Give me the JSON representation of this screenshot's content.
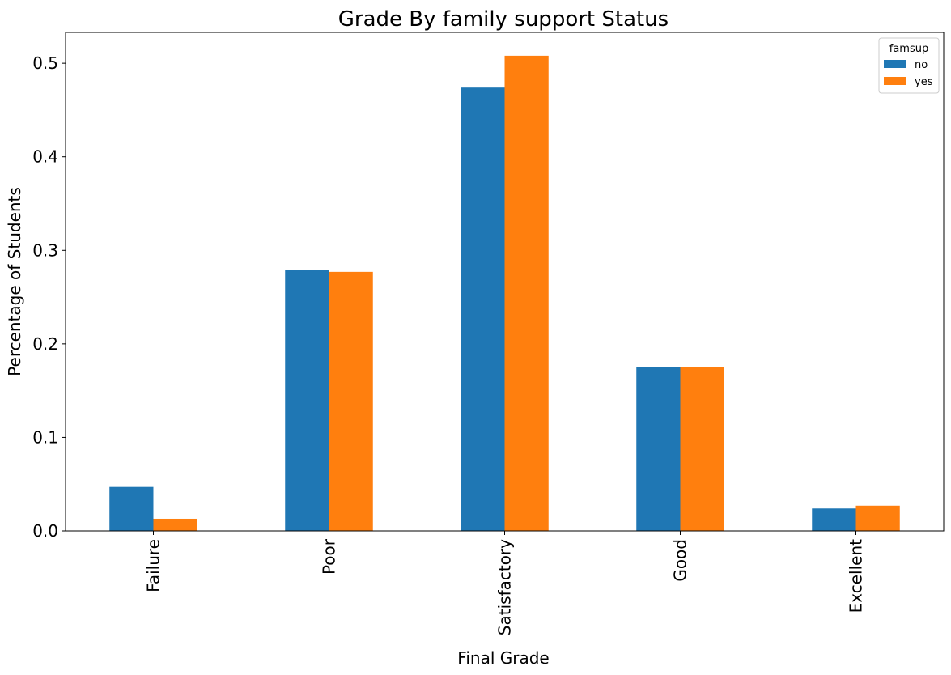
{
  "chart_data": {
    "type": "bar",
    "title": "Grade By family support Status",
    "xlabel": "Final Grade",
    "ylabel": "Percentage of Students",
    "categories": [
      "Failure",
      "Poor",
      "Satisfactory",
      "Good",
      "Excellent"
    ],
    "series": [
      {
        "name": "no",
        "color": "#1f77b4",
        "values": [
          0.047,
          0.279,
          0.474,
          0.175,
          0.024
        ]
      },
      {
        "name": "yes",
        "color": "#ff7f0e",
        "values": [
          0.013,
          0.277,
          0.508,
          0.175,
          0.027
        ]
      }
    ],
    "ylim": [
      0,
      0.533
    ],
    "yticks": [
      "0.0",
      "0.1",
      "0.2",
      "0.3",
      "0.4",
      "0.5"
    ],
    "legend": {
      "title": "famsup",
      "placement": "top-right"
    },
    "grid": false
  }
}
